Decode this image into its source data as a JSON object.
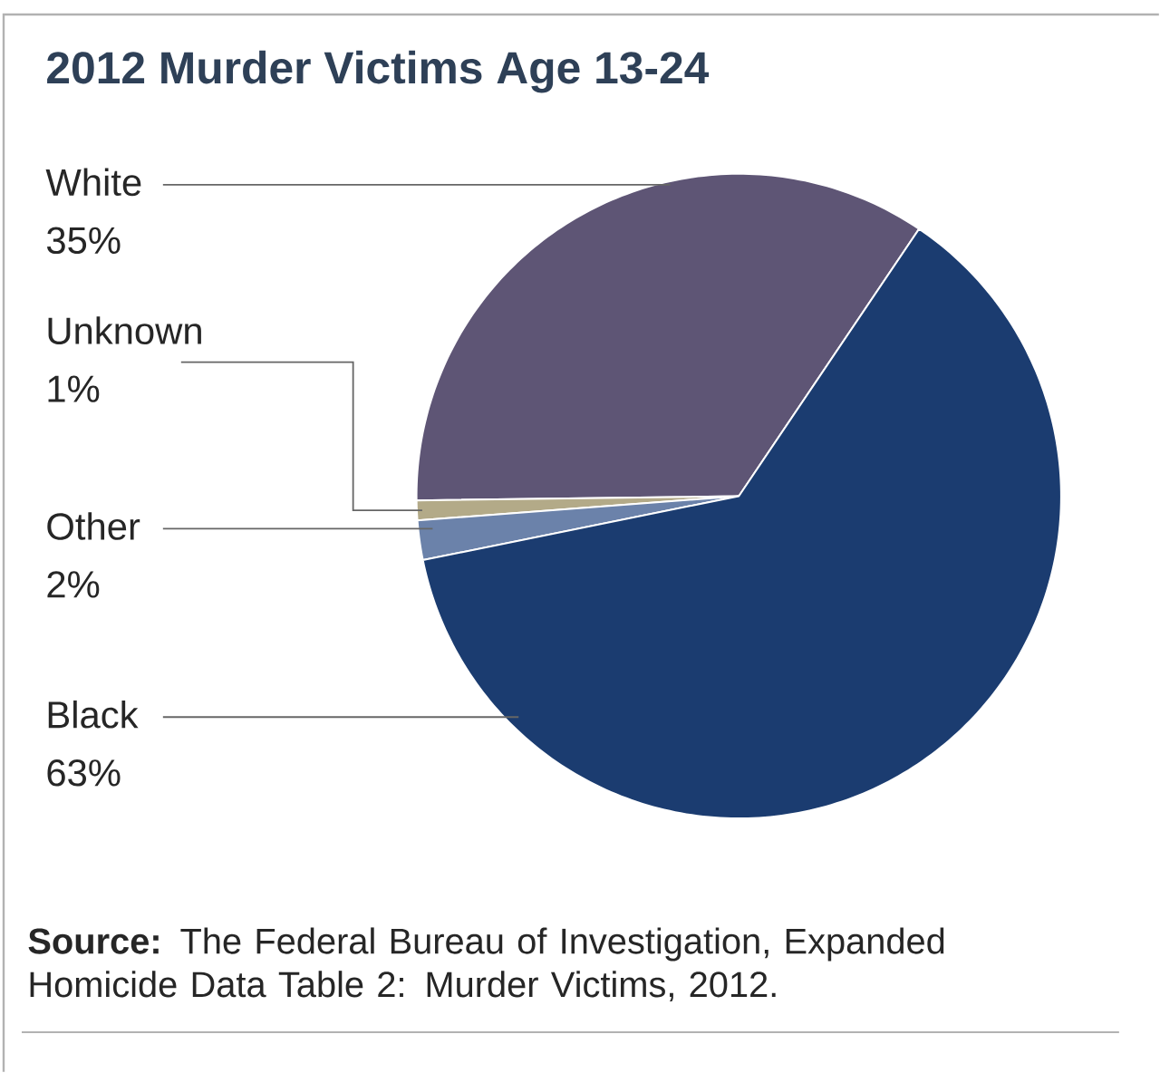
{
  "chart_data": {
    "type": "pie",
    "title": "2012 Murder Victims Age 13-24",
    "categories": [
      "White",
      "Unknown",
      "Other",
      "Black"
    ],
    "values": [
      35,
      1,
      2,
      63
    ],
    "value_labels": [
      "35%",
      "1%",
      "2%",
      "63%"
    ],
    "colors": [
      "#5e5575",
      "#b3aa88",
      "#6b82aa",
      "#1b3c70"
    ],
    "annotations": [
      "**Source:** The Federal Bureau of Investigation, Expanded Homicide Data Table 2: Murder Victims, 2012."
    ]
  }
}
